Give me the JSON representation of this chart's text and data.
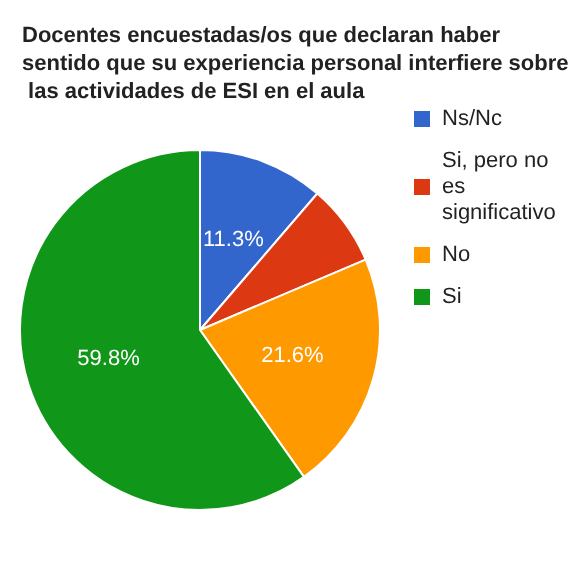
{
  "chart_data": {
    "type": "pie",
    "title": "Docentes encuestadas/os que declaran haber sentido que su experiencia personal interfiere sobre las actividades de ESI en el aula",
    "categories": [
      "Ns/Nc",
      "Si, pero no es significativo",
      "No",
      "Si"
    ],
    "values": [
      11.3,
      7.3,
      21.6,
      59.8
    ],
    "colors": [
      "#3366cc",
      "#dc3912",
      "#ff9900",
      "#109618"
    ],
    "value_labels": [
      "11.3%",
      null,
      "21.6%",
      "59.8%"
    ],
    "legend": "right"
  }
}
